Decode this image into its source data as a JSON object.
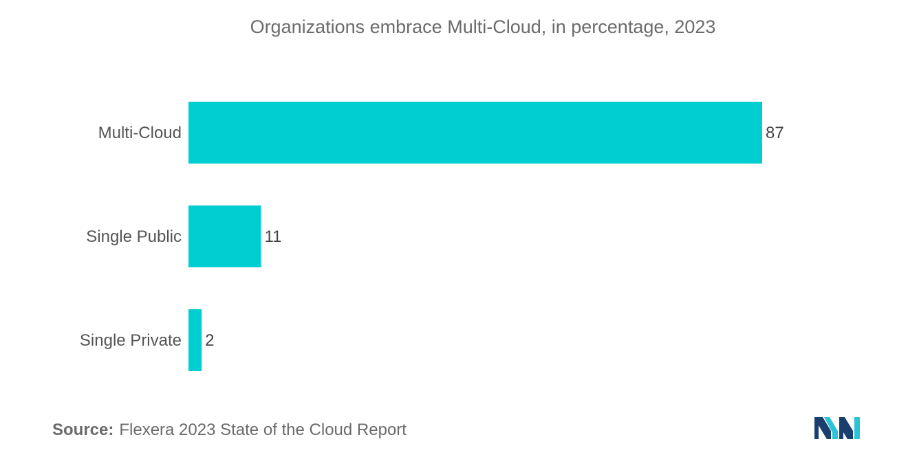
{
  "chart_data": {
    "type": "bar",
    "orientation": "horizontal",
    "title": "Organizations embrace Multi-Cloud, in percentage, 2023",
    "categories": [
      "Multi-Cloud",
      "Single Public",
      "Single Private"
    ],
    "values": [
      87,
      11,
      2
    ],
    "data_labels": [
      "87",
      "11",
      "2"
    ],
    "xlim": [
      0,
      87
    ],
    "grid": false,
    "legend": "none",
    "bar_color": "#00CED1"
  },
  "source": {
    "label": "Source:",
    "text": "Flexera 2023 State of the Cloud Report"
  },
  "logo": {
    "icon": "mordor-intelligence-logo-icon",
    "colors": [
      "#1a3f6f",
      "#2cc3d6"
    ]
  }
}
